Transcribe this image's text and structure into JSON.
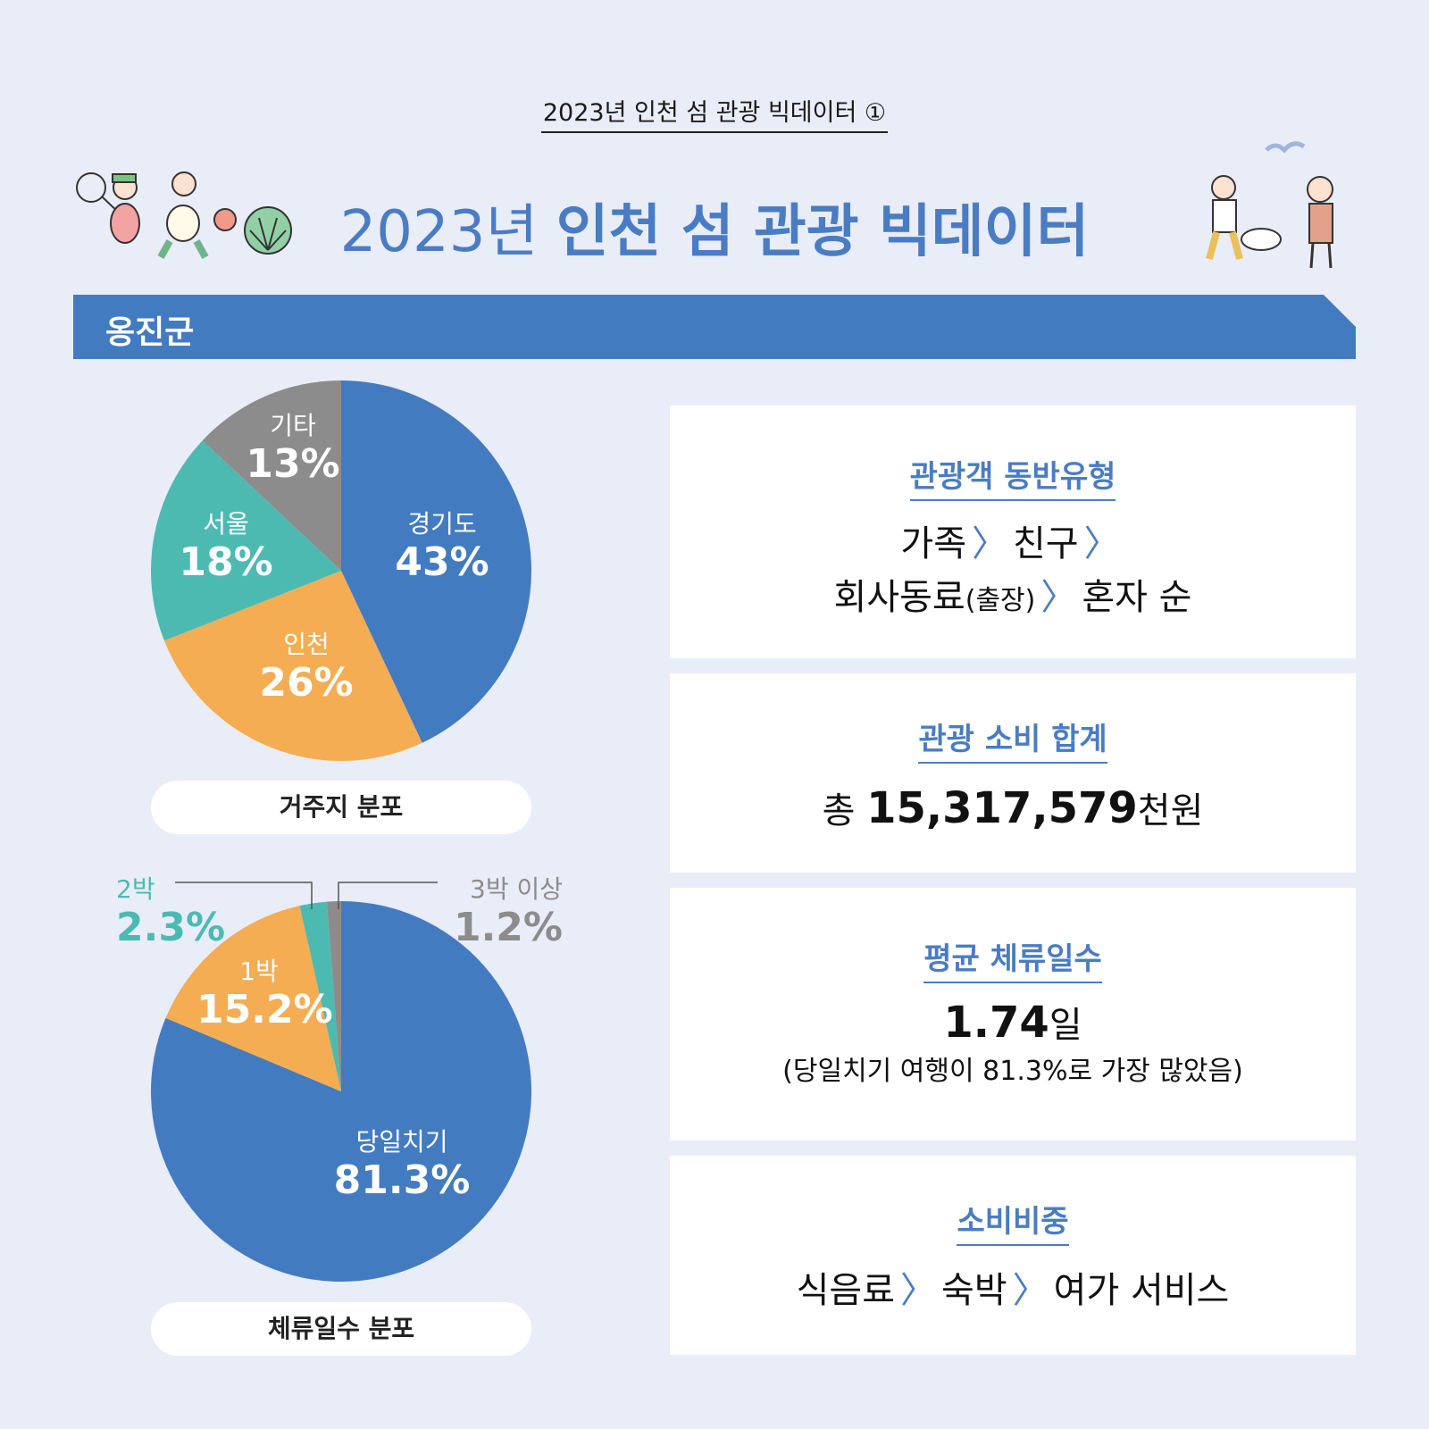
{
  "header": {
    "top_label": "2023년 인천 섬 관광 빅데이터 ①",
    "title_year": "2023년",
    "title_rest": "인천 섬 관광 빅데이터"
  },
  "region": "옹진군",
  "colors": {
    "blue": "#437bc1",
    "orange": "#f4ad52",
    "teal": "#4dbab2",
    "gray": "#8c8c8c",
    "bg": "#e9edf8"
  },
  "chart_data": [
    {
      "type": "pie",
      "title": "거주지 분포",
      "slices": [
        {
          "label": "경기도",
          "value": 43,
          "display": "43%",
          "color": "#437bc1"
        },
        {
          "label": "인천",
          "value": 26,
          "display": "26%",
          "color": "#f4ad52"
        },
        {
          "label": "서울",
          "value": 18,
          "display": "18%",
          "color": "#4dbab2"
        },
        {
          "label": "기타",
          "value": 13,
          "display": "13%",
          "color": "#8c8c8c"
        }
      ]
    },
    {
      "type": "pie",
      "title": "체류일수 분포",
      "slices": [
        {
          "label": "당일치기",
          "value": 81.3,
          "display": "81.3%",
          "color": "#437bc1"
        },
        {
          "label": "1박",
          "value": 15.2,
          "display": "15.2%",
          "color": "#f4ad52"
        },
        {
          "label": "2박",
          "value": 2.3,
          "display": "2.3%",
          "color": "#4dbab2"
        },
        {
          "label": "3박 이상",
          "value": 1.2,
          "display": "1.2%",
          "color": "#8c8c8c"
        }
      ]
    }
  ],
  "cards": {
    "companion": {
      "title": "관광객 동반유형",
      "item1": "가족",
      "item2": "친구",
      "item3": "회사동료",
      "item3_note": "(출장)",
      "item4": "혼자 순"
    },
    "spending": {
      "title": "관광 소비 합계",
      "prefix": "총",
      "amount": "15,317,579",
      "unit": "천원"
    },
    "stay": {
      "title": "평균 체류일수",
      "value": "1.74",
      "unit": "일",
      "note": "(당일치기 여행이 81.3%로 가장 많았음)"
    },
    "share": {
      "title": "소비비중",
      "item1": "식음료",
      "item2": "숙박",
      "item3": "여가 서비스"
    },
    "separator": "〉"
  }
}
